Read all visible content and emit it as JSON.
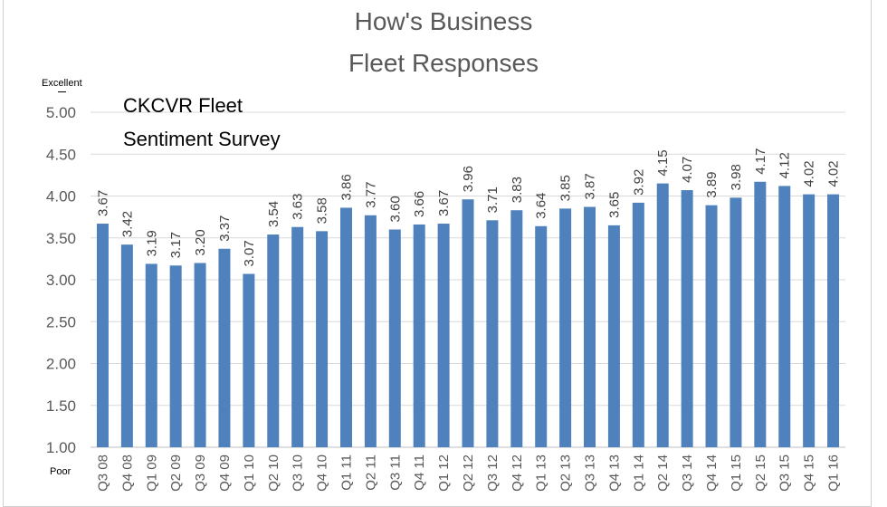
{
  "chart_data": {
    "type": "bar",
    "title": "How's Business",
    "subtitle": "Fleet Responses",
    "annotation_lines": [
      "CKCVR Fleet",
      "Sentiment Survey"
    ],
    "scale_top_label": "Excellent",
    "scale_bottom_label": "Poor",
    "xlabel": "",
    "ylabel": "",
    "ylim": [
      1.0,
      5.0
    ],
    "yticks": [
      "1.00",
      "1.50",
      "2.00",
      "2.50",
      "3.00",
      "3.50",
      "4.00",
      "4.50",
      "5.00"
    ],
    "grid": true,
    "legend": "none",
    "bar_color": "#4F81BD",
    "categories": [
      "Q3 08",
      "Q4 08",
      "Q1 09",
      "Q2 09",
      "Q3 09",
      "Q4 09",
      "Q1 10",
      "Q2 10",
      "Q3 10",
      "Q4 10",
      "Q1 11",
      "Q2 11",
      "Q3 11",
      "Q4 11",
      "Q1 12",
      "Q2 12",
      "Q3 12",
      "Q4 12",
      "Q1 13",
      "Q2 13",
      "Q3 13",
      "Q4 13",
      "Q1 14",
      "Q2 14",
      "Q3 14",
      "Q4 14",
      "Q1 15",
      "Q2 15",
      "Q3 15",
      "Q4 15",
      "Q1 16"
    ],
    "values": [
      3.67,
      3.42,
      3.19,
      3.17,
      3.2,
      3.37,
      3.07,
      3.54,
      3.63,
      3.58,
      3.86,
      3.77,
      3.6,
      3.66,
      3.67,
      3.96,
      3.71,
      3.83,
      3.64,
      3.85,
      3.87,
      3.65,
      3.92,
      4.15,
      4.07,
      3.89,
      3.98,
      4.17,
      4.12,
      4.02,
      4.02
    ],
    "value_labels": [
      "3.67",
      "3.42",
      "3.19",
      "3.17",
      "3.20",
      "3.37",
      "3.07",
      "3.54",
      "3.63",
      "3.58",
      "3.86",
      "3.77",
      "3.60",
      "3.66",
      "3.67",
      "3.96",
      "3.71",
      "3.83",
      "3.64",
      "3.85",
      "3.87",
      "3.65",
      "3.92",
      "4.15",
      "4.07",
      "3.89",
      "3.98",
      "4.17",
      "4.12",
      "4.02",
      "4.02"
    ]
  }
}
